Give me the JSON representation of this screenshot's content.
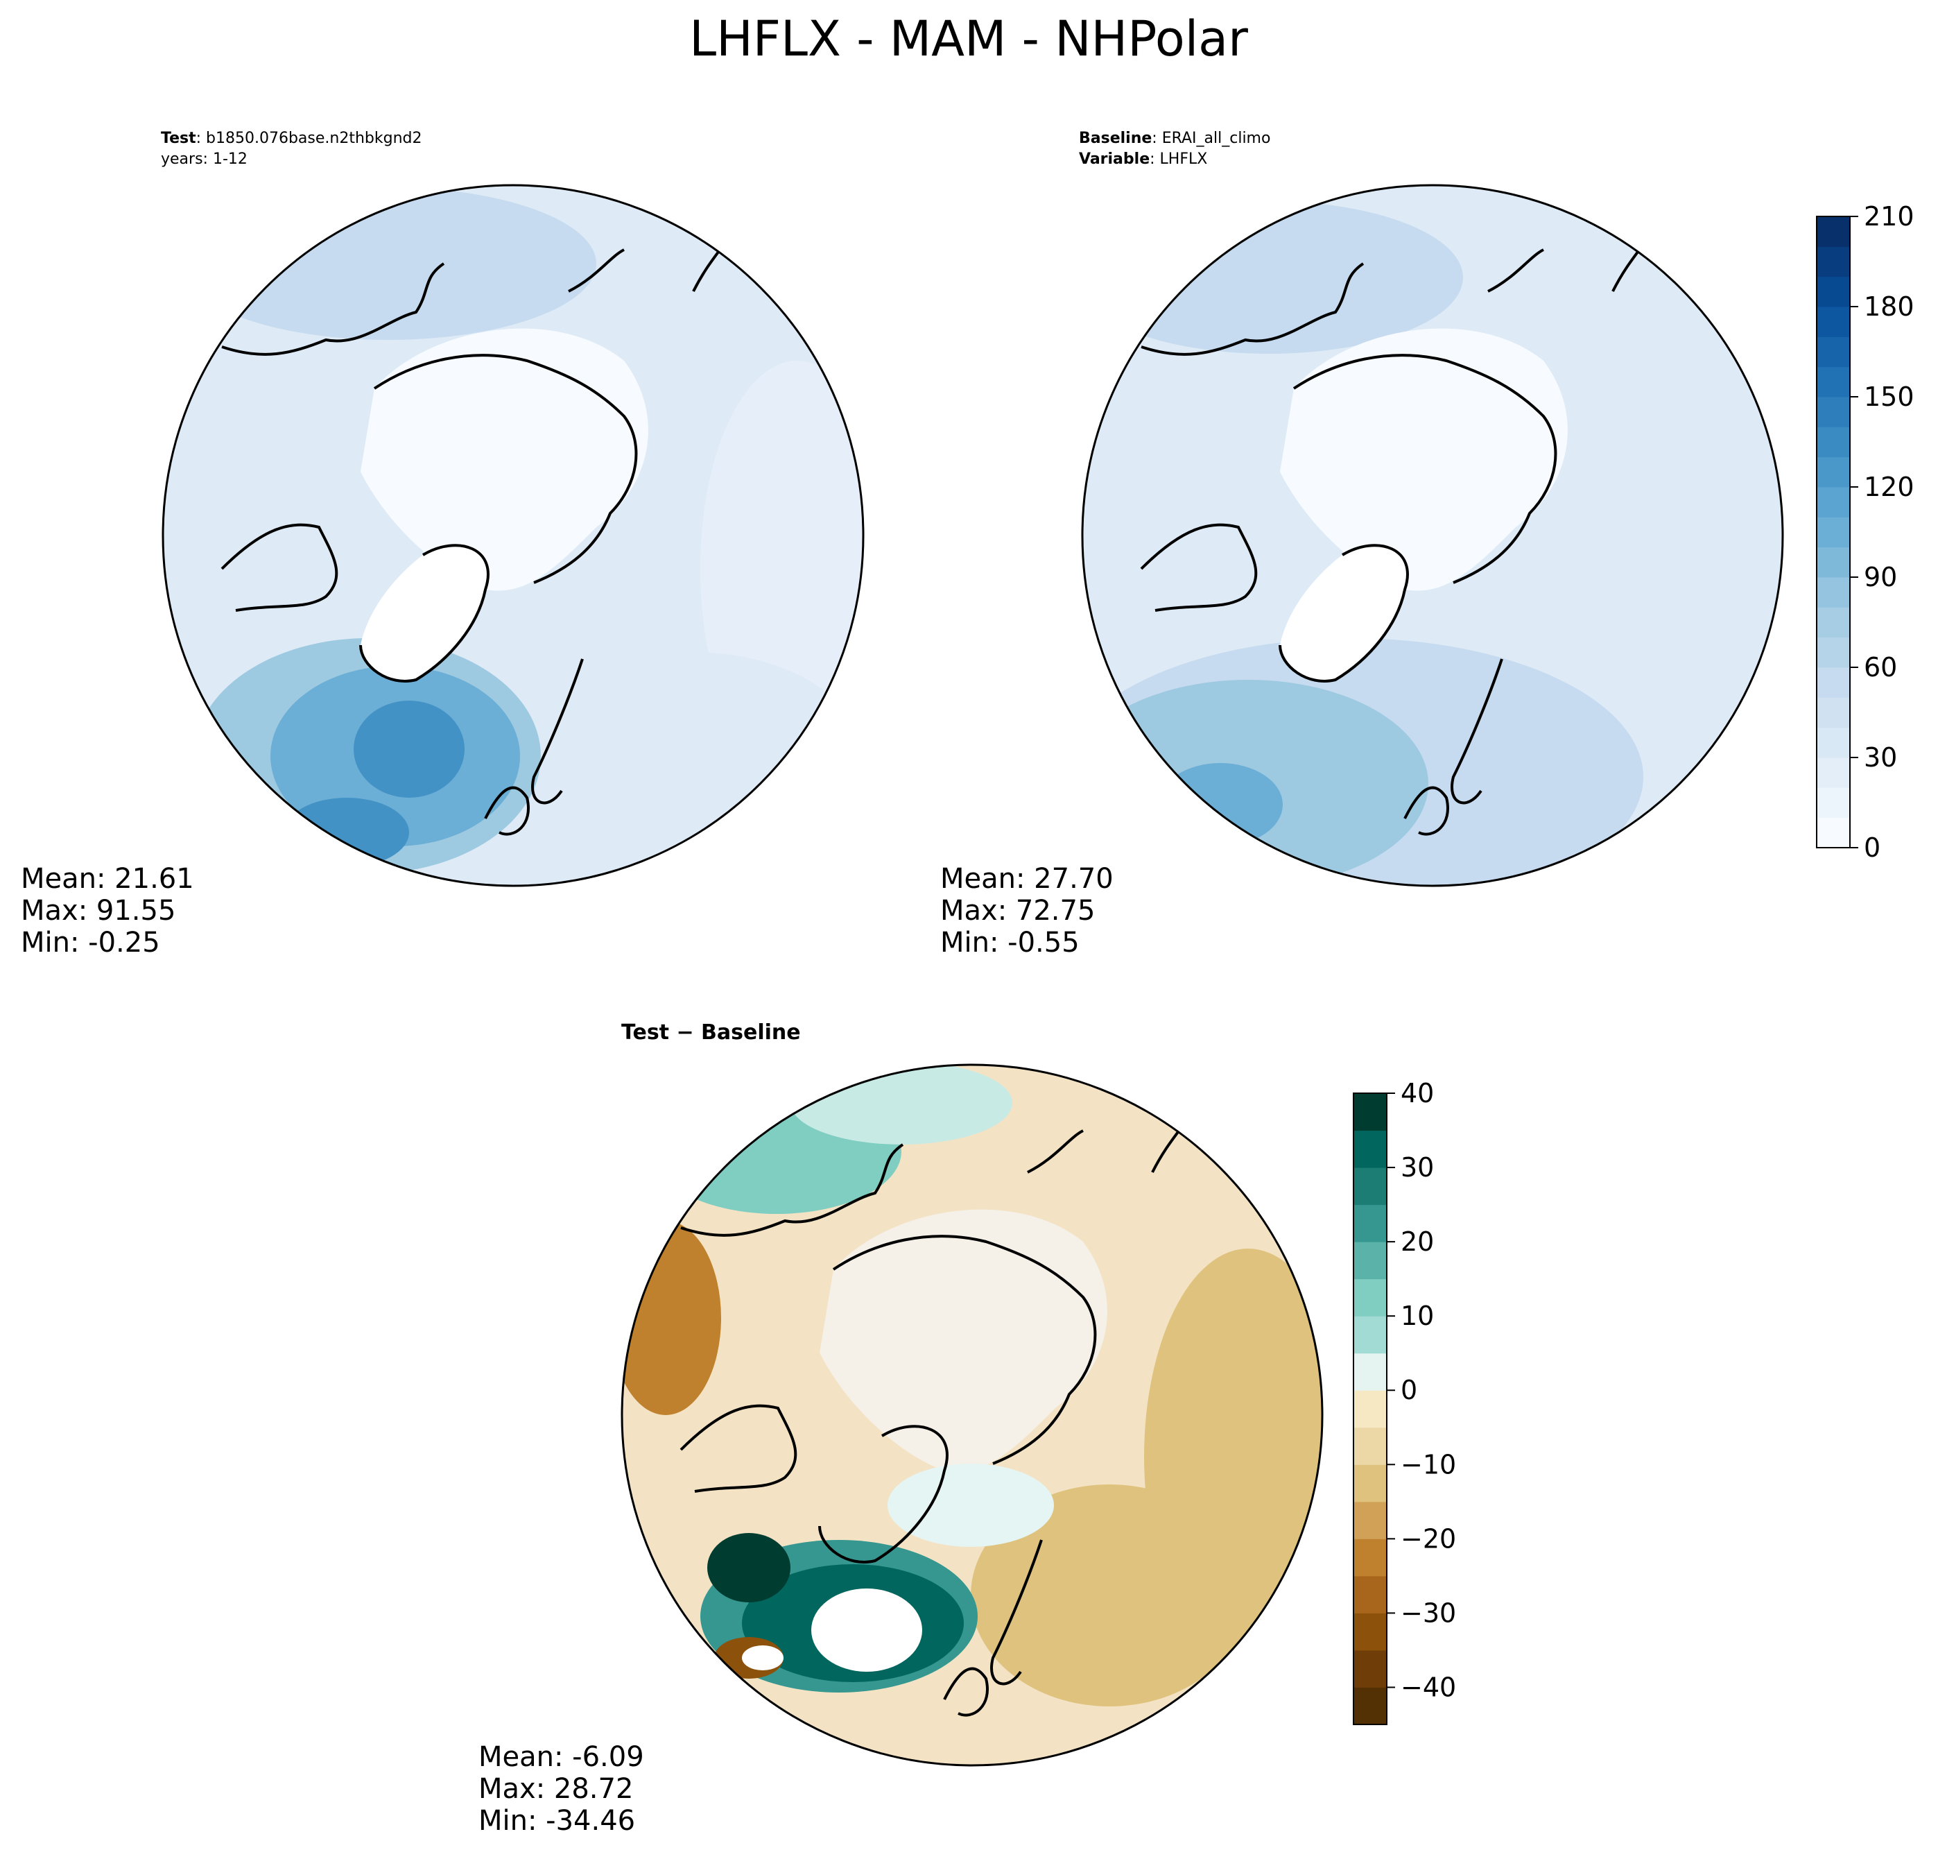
{
  "title": "LHFLX - MAM - NHPolar",
  "panels": [
    {
      "header": [
        {
          "bold": "Test",
          "text": ": b1850.076base.n2thbkgnd2"
        },
        {
          "bold": "",
          "text": "years: 1-12"
        }
      ],
      "stats": [
        "Mean: 21.61",
        "Max: 91.55",
        "Min: -0.25"
      ]
    },
    {
      "header": [
        {
          "bold": "Baseline",
          "text": ": ERAI_all_climo"
        },
        {
          "bold": "Variable",
          "text": ": LHFLX"
        }
      ],
      "stats": [
        "Mean: 27.70",
        "Max: 72.75",
        "Min: -0.55"
      ]
    },
    {
      "header": [
        {
          "bold": "Test − Baseline",
          "text": ""
        }
      ],
      "stats": [
        "Mean: -6.09",
        "Max: 28.72",
        "Min: -34.46"
      ]
    }
  ],
  "colorbars": [
    {
      "name": "field",
      "ticks": [
        "0",
        "30",
        "60",
        "90",
        "120",
        "150",
        "180",
        "210"
      ],
      "range": [
        0,
        210
      ],
      "levels": 21,
      "colors": [
        "#f7fbff",
        "#08306b"
      ]
    },
    {
      "name": "difference",
      "ticks": [
        "−40",
        "−30",
        "−20",
        "−10",
        "0",
        "10",
        "20",
        "30",
        "40"
      ],
      "range": [
        -45,
        40
      ],
      "levels": 17,
      "colors_neg": [
        "#543005",
        "#8c510a",
        "#bf812d",
        "#dfc27d",
        "#f6e8c3",
        "#f5f0e8"
      ],
      "colors_pos": [
        "#e5f5f3",
        "#c7eae5",
        "#80cdc1",
        "#35978f",
        "#01665e",
        "#003c30"
      ]
    }
  ],
  "colors": {
    "land_outline": "#000000",
    "map_background_field": "#deebf7",
    "map_background_diff": "#f3e3c4"
  }
}
